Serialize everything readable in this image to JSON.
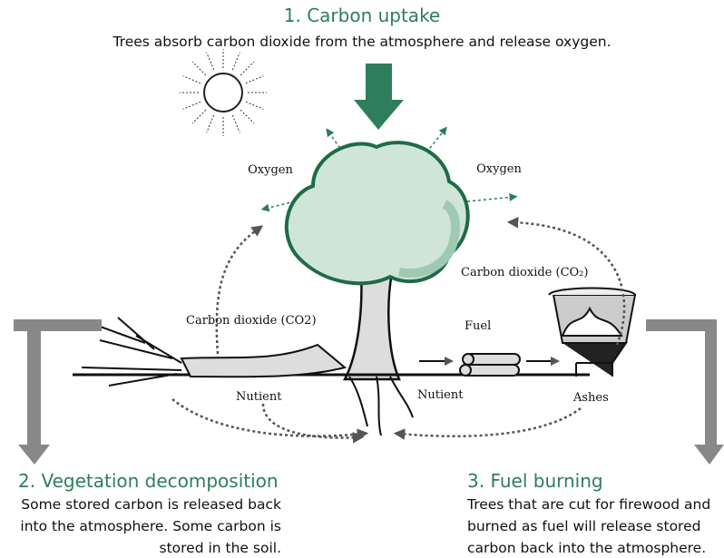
{
  "header": {
    "title": "1. Carbon uptake",
    "subtitle": "Trees absorb carbon dioxide from the atmosphere and release oxygen."
  },
  "labels": {
    "oxygen_left": "Oxygen",
    "oxygen_right": "Oxygen",
    "co2_left": "Carbon dioxide (CO2)",
    "co2_right": "Carbon dioxide (CO₂)",
    "fuel": "Fuel",
    "nutrient_left": "Nutient",
    "nutrient_right": "Nutient",
    "ashes": "Ashes"
  },
  "decomposition": {
    "title": "2. Vegetation decomposition",
    "lines": [
      "Some stored carbon is released back",
      "into the atmosphere. Some carbon is",
      "stored in the soil."
    ]
  },
  "burning": {
    "title": "3. Fuel burning",
    "lines": [
      "Trees that are cut for firewood and",
      "burned as fuel will release stored",
      "carbon back into the atmosphere."
    ]
  }
}
